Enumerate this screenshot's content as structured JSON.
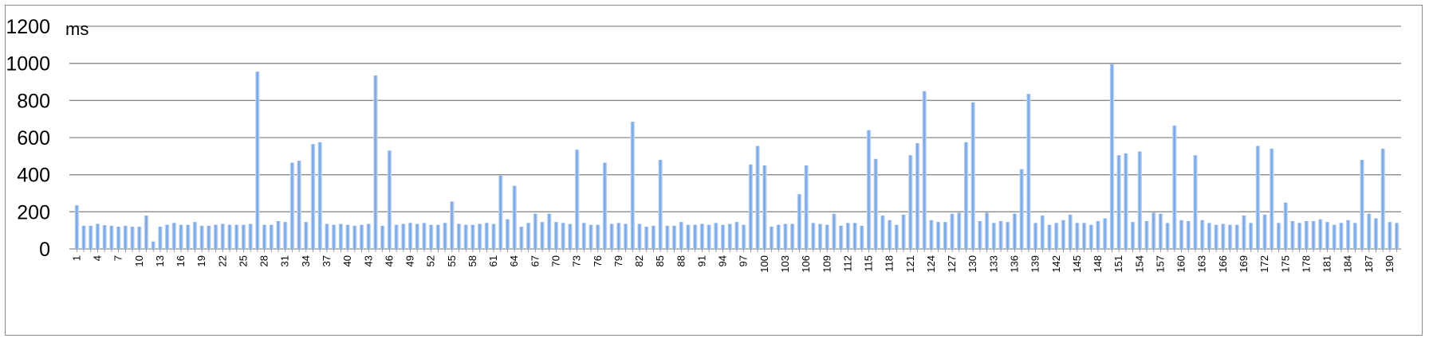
{
  "chart_data": {
    "type": "bar",
    "ylabel": "ms",
    "ylim": [
      0,
      1200
    ],
    "yticks": [
      "0",
      "200",
      "400",
      "600",
      "800",
      "1000",
      "1200"
    ],
    "grid": true,
    "legend": "none",
    "categories": [
      "1",
      "2",
      "3",
      "4",
      "5",
      "6",
      "7",
      "8",
      "9",
      "10",
      "11",
      "12",
      "13",
      "14",
      "15",
      "16",
      "17",
      "18",
      "19",
      "20",
      "21",
      "22",
      "23",
      "24",
      "25",
      "26",
      "27",
      "28",
      "29",
      "30",
      "31",
      "32",
      "33",
      "34",
      "35",
      "36",
      "37",
      "38",
      "39",
      "40",
      "41",
      "42",
      "43",
      "44",
      "45",
      "46",
      "47",
      "48",
      "49",
      "50",
      "51",
      "52",
      "53",
      "54",
      "55",
      "56",
      "57",
      "58",
      "59",
      "60",
      "61",
      "62",
      "63",
      "64",
      "65",
      "66",
      "67",
      "68",
      "69",
      "70",
      "71",
      "72",
      "73",
      "74",
      "75",
      "76",
      "77",
      "78",
      "79",
      "80",
      "81",
      "82",
      "83",
      "84",
      "85",
      "86",
      "87",
      "88",
      "89",
      "90",
      "91",
      "92",
      "93",
      "94",
      "95",
      "96",
      "97",
      "98",
      "99",
      "100",
      "101",
      "102",
      "103",
      "104",
      "105",
      "106",
      "107",
      "108",
      "109",
      "110",
      "111",
      "112",
      "113",
      "114",
      "115",
      "116",
      "117",
      "118",
      "119",
      "120",
      "121",
      "122",
      "123",
      "124",
      "125",
      "126",
      "127",
      "128",
      "129",
      "130",
      "131",
      "132",
      "133",
      "134",
      "135",
      "136",
      "137",
      "138",
      "139",
      "140",
      "141",
      "142",
      "143",
      "144",
      "145",
      "146",
      "147",
      "148",
      "149",
      "150",
      "151",
      "152",
      "153",
      "154",
      "155",
      "156",
      "157",
      "158",
      "159",
      "160",
      "161",
      "162",
      "163",
      "164",
      "165",
      "166",
      "167",
      "168",
      "169",
      "170",
      "171",
      "172",
      "173",
      "174",
      "175",
      "176",
      "177",
      "178",
      "179",
      "180",
      "181",
      "182",
      "183",
      "184",
      "185",
      "186",
      "187",
      "188",
      "189",
      "190",
      "191"
    ],
    "shown_tick_labels": [
      "1",
      "4",
      "7",
      "10",
      "13",
      "16",
      "19",
      "22",
      "25",
      "28",
      "31",
      "34",
      "37",
      "40",
      "43",
      "46",
      "49",
      "52",
      "55",
      "58",
      "61",
      "64",
      "67",
      "70",
      "73",
      "76",
      "79",
      "82",
      "85",
      "88",
      "91",
      "94",
      "97",
      "100",
      "103",
      "106",
      "109",
      "112",
      "115",
      "118",
      "121",
      "124",
      "127",
      "130",
      "133",
      "136",
      "139",
      "142",
      "145",
      "148",
      "151",
      "154",
      "157",
      "160",
      "163",
      "166",
      "169",
      "172",
      "175",
      "178",
      "181",
      "184",
      "187",
      "190"
    ],
    "values": [
      235,
      125,
      125,
      135,
      128,
      125,
      120,
      125,
      120,
      120,
      180,
      40,
      120,
      130,
      140,
      130,
      130,
      145,
      125,
      125,
      130,
      135,
      130,
      130,
      130,
      135,
      955,
      130,
      130,
      150,
      145,
      465,
      475,
      145,
      565,
      575,
      135,
      130,
      135,
      130,
      125,
      130,
      135,
      935,
      125,
      530,
      130,
      135,
      140,
      135,
      140,
      130,
      130,
      140,
      255,
      135,
      130,
      130,
      135,
      140,
      135,
      395,
      160,
      340,
      120,
      140,
      190,
      145,
      190,
      145,
      140,
      135,
      535,
      140,
      130,
      130,
      465,
      135,
      140,
      135,
      685,
      135,
      120,
      125,
      480,
      125,
      125,
      145,
      130,
      130,
      135,
      130,
      140,
      130,
      135,
      145,
      130,
      455,
      555,
      450,
      120,
      130,
      135,
      135,
      295,
      450,
      140,
      135,
      130,
      190,
      125,
      140,
      140,
      125,
      640,
      485,
      180,
      155,
      130,
      185,
      505,
      570,
      850,
      155,
      145,
      145,
      190,
      195,
      575,
      790,
      150,
      195,
      140,
      150,
      145,
      190,
      430,
      835,
      140,
      180,
      130,
      140,
      155,
      185,
      140,
      140,
      130,
      150,
      165,
      995,
      505,
      515,
      145,
      525,
      150,
      195,
      190,
      140,
      665,
      155,
      150,
      505,
      155,
      140,
      130,
      135,
      130,
      130,
      180,
      140,
      555,
      185,
      540,
      140,
      250,
      150,
      140,
      150,
      150,
      160,
      145,
      130,
      140,
      155,
      140,
      480,
      190,
      165,
      540,
      145,
      140
    ],
    "colors": {
      "bar_light": "#cfe0f6",
      "bar_dark": "#6d9ee0",
      "grid": "#8a8a8a",
      "frame": "#8c8c8c"
    }
  }
}
